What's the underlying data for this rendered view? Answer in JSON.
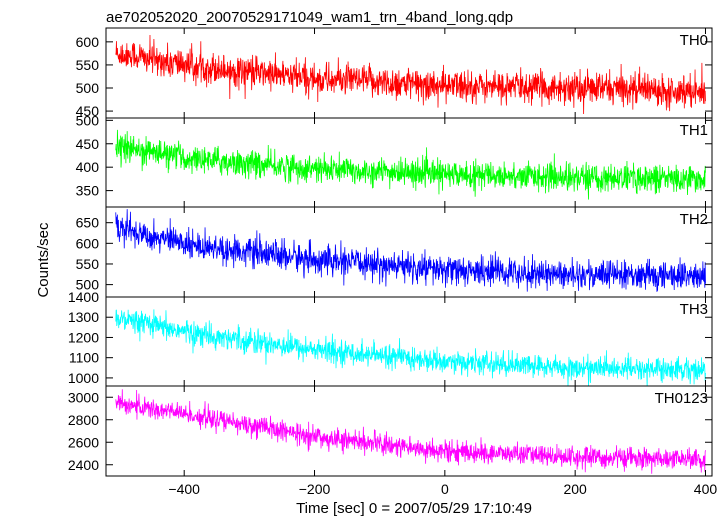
{
  "chart_data": {
    "type": "line",
    "title": "ae702052020_20070529171049_wam1_trn_4band_long.qdp",
    "xlabel": "Time [sec] 0 = 2007/05/29 17:10:49",
    "ylabel": "Counts/sec",
    "xlim": [
      -520,
      410
    ],
    "x_ticks": [
      -400,
      -200,
      0,
      200,
      400
    ],
    "x_tick_labels": [
      "−400",
      "−200",
      "0",
      "200",
      "400"
    ],
    "x_range": [
      -505,
      400
    ],
    "panels": [
      {
        "name": "TH0",
        "color": "#ff0000",
        "ylim": [
          435,
          630
        ],
        "y_ticks": [
          450,
          500,
          550,
          600
        ],
        "trend": [
          [
            -505,
            575
          ],
          [
            -400,
            550
          ],
          [
            -200,
            520
          ],
          [
            0,
            505
          ],
          [
            200,
            500
          ],
          [
            400,
            495
          ]
        ],
        "noise": 30
      },
      {
        "name": "TH1",
        "color": "#00ff00",
        "ylim": [
          315,
          505
        ],
        "y_ticks": [
          350,
          400,
          450,
          500
        ],
        "trend": [
          [
            -505,
            445
          ],
          [
            -400,
            420
          ],
          [
            -200,
            395
          ],
          [
            0,
            385
          ],
          [
            200,
            378
          ],
          [
            400,
            375
          ]
        ],
        "noise": 25
      },
      {
        "name": "TH2",
        "color": "#0000ff",
        "ylim": [
          470,
          688
        ],
        "y_ticks": [
          500,
          550,
          600,
          650
        ],
        "trend": [
          [
            -505,
            640
          ],
          [
            -400,
            600
          ],
          [
            -200,
            560
          ],
          [
            0,
            535
          ],
          [
            200,
            525
          ],
          [
            400,
            520
          ]
        ],
        "noise": 30
      },
      {
        "name": "TH3",
        "color": "#00ffff",
        "ylim": [
          960,
          1400
        ],
        "y_ticks": [
          1000,
          1100,
          1200,
          1300,
          1400
        ],
        "trend": [
          [
            -505,
            1290
          ],
          [
            -400,
            1230
          ],
          [
            -200,
            1140
          ],
          [
            0,
            1080
          ],
          [
            200,
            1050
          ],
          [
            400,
            1040
          ]
        ],
        "noise": 50
      },
      {
        "name": "TH0123",
        "color": "#ff00ff",
        "ylim": [
          2300,
          3100
        ],
        "y_ticks": [
          2400,
          2600,
          2800,
          3000
        ],
        "trend": [
          [
            -505,
            2950
          ],
          [
            -400,
            2850
          ],
          [
            -200,
            2650
          ],
          [
            0,
            2520
          ],
          [
            200,
            2470
          ],
          [
            400,
            2440
          ]
        ],
        "noise": 80
      }
    ]
  }
}
